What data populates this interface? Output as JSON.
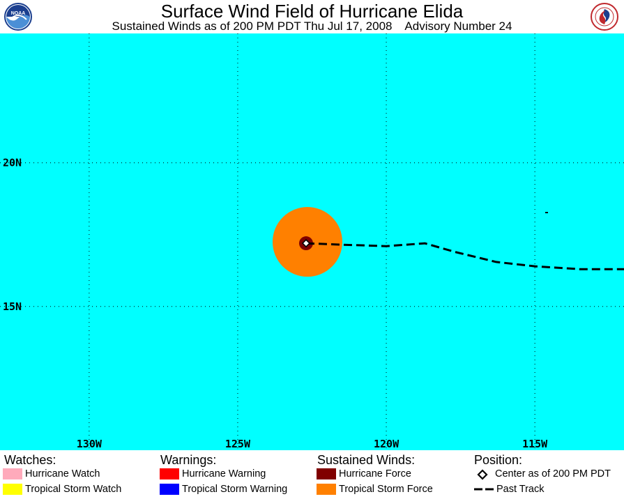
{
  "header": {
    "title": "Surface Wind Field of Hurricane Elida",
    "subtitle": "Sustained Winds as of 200 PM PDT Thu Jul 17, 2008    Advisory Number 24",
    "left_logo_text": "NOAA"
  },
  "map": {
    "background_color": "#00ffff",
    "lon_range": [
      -133.0,
      -112.0
    ],
    "lat_range": [
      10.0,
      24.5
    ],
    "longitude_labels": [
      {
        "lon": -130,
        "text": "130W"
      },
      {
        "lon": -125,
        "text": "125W"
      },
      {
        "lon": -120,
        "text": "120W"
      },
      {
        "lon": -115,
        "text": "115W"
      }
    ],
    "latitude_labels": [
      {
        "lat": 20,
        "text": "20N"
      },
      {
        "lat": 15,
        "text": "15N"
      }
    ],
    "storm_center": {
      "lon": -122.7,
      "lat": 17.2
    },
    "tropical_storm_force_color": "#ff8000",
    "hurricane_force_color": "#800000",
    "past_track": [
      [
        -122.7,
        17.2
      ],
      [
        -121.5,
        17.15
      ],
      [
        -120.0,
        17.1
      ],
      [
        -118.7,
        17.2
      ],
      [
        -117.7,
        16.9
      ],
      [
        -116.3,
        16.55
      ],
      [
        -115.0,
        16.4
      ],
      [
        -113.5,
        16.3
      ],
      [
        -112.0,
        16.3
      ]
    ]
  },
  "legend": {
    "watches": {
      "heading": "Watches:",
      "items": [
        {
          "label": "Hurricane Watch",
          "color": "#ffaabb"
        },
        {
          "label": "Tropical Storm Watch",
          "color": "#ffff00"
        }
      ]
    },
    "warnings": {
      "heading": "Warnings:",
      "items": [
        {
          "label": "Hurricane Warning",
          "color": "#ff0000"
        },
        {
          "label": "Tropical Storm Warning",
          "color": "#0000ff"
        }
      ]
    },
    "sustained_winds": {
      "heading": "Sustained Winds:",
      "items": [
        {
          "label": "Hurricane Force",
          "color": "#800000"
        },
        {
          "label": "Tropical Storm Force",
          "color": "#ff8000"
        }
      ]
    },
    "position": {
      "heading": "Position:",
      "items": [
        {
          "label": "Center as of 200 PM PDT",
          "icon": "diamond-icon"
        },
        {
          "label": "Past Track",
          "icon": "dashed-line-icon"
        }
      ]
    }
  }
}
